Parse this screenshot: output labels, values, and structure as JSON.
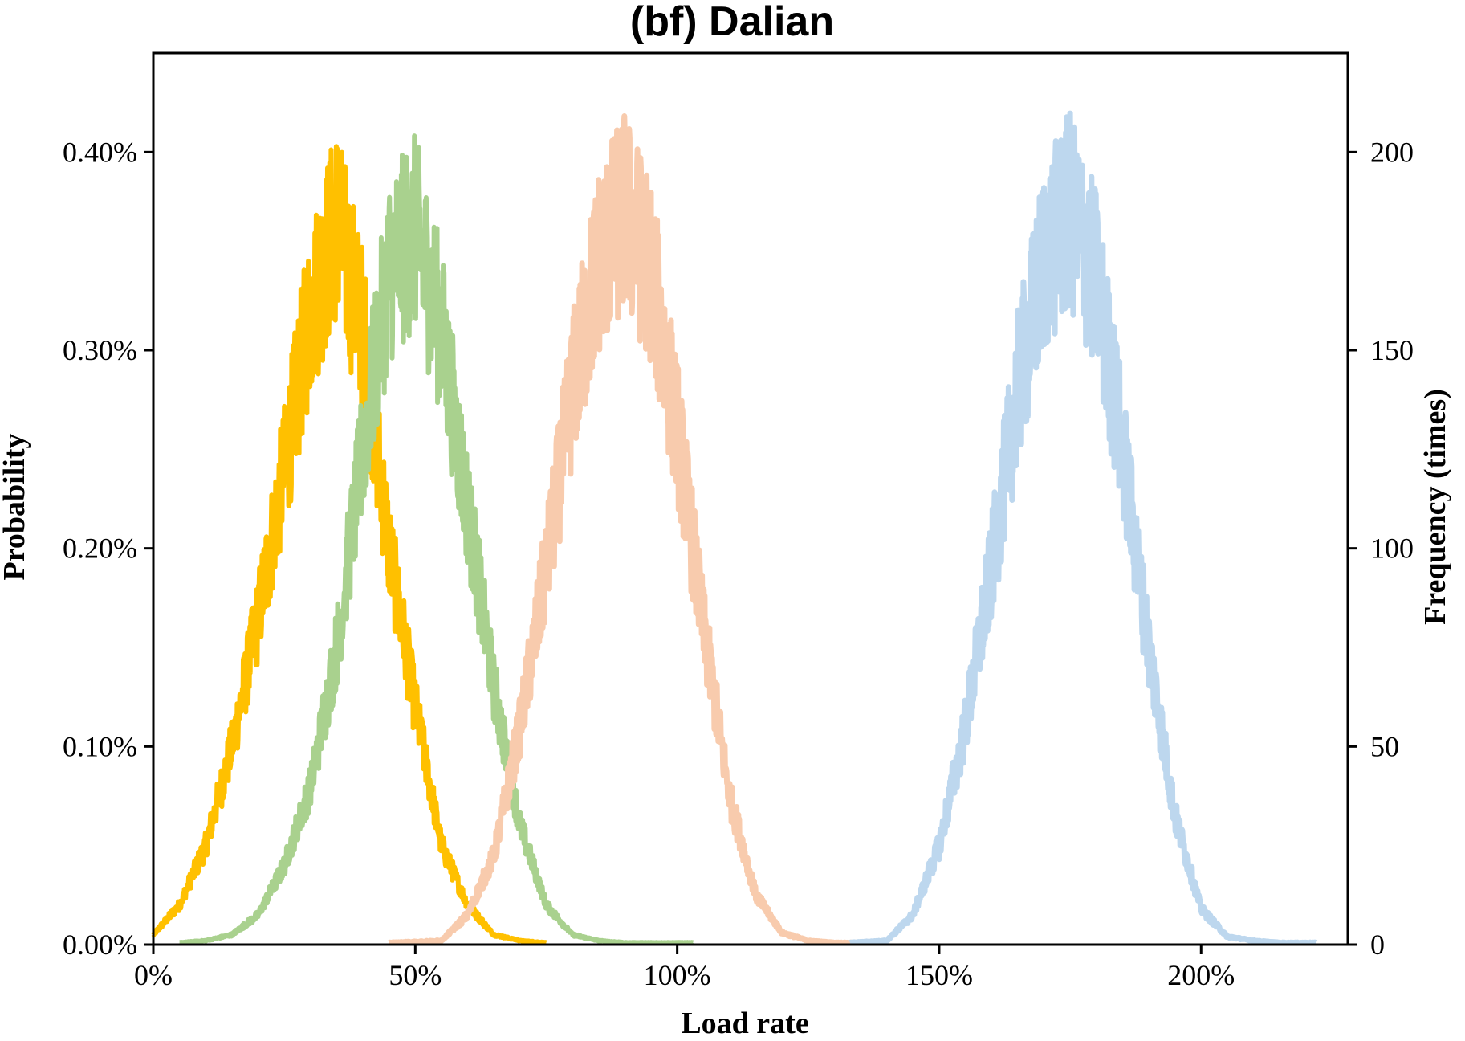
{
  "chart_data": {
    "type": "line",
    "title": "(bf) Dalian",
    "xlabel": "Load rate",
    "ylabel": "Probability",
    "y2label": "Frequency (times)",
    "xlim": [
      0,
      2.28
    ],
    "ylim": [
      0,
      0.0045
    ],
    "y2lim": [
      0,
      225
    ],
    "xticks": [
      0,
      0.5,
      1.0,
      1.5,
      2.0
    ],
    "xtick_labels": [
      "0%",
      "50%",
      "100%",
      "150%",
      "200%"
    ],
    "yticks": [
      0,
      0.001,
      0.002,
      0.003,
      0.004
    ],
    "ytick_labels": [
      "0.00%",
      "0.10%",
      "0.20%",
      "0.30%",
      "0.40%"
    ],
    "y2ticks": [
      0,
      50,
      100,
      150,
      200
    ],
    "y2tick_labels": [
      "0",
      "50",
      "100",
      "150",
      "200"
    ],
    "grid": false,
    "legend": "none",
    "series": [
      {
        "color": "#FFC000",
        "line_width": 6,
        "x": [
          0.0,
          0.05,
          0.1,
          0.15,
          0.2,
          0.25,
          0.3,
          0.35,
          0.4,
          0.45,
          0.5,
          0.55,
          0.6,
          0.65,
          0.7,
          0.75
        ],
        "y": [
          5e-05,
          0.0002,
          0.0005,
          0.001,
          0.00165,
          0.0024,
          0.0032,
          0.00365,
          0.0031,
          0.002,
          0.0012,
          0.0005,
          0.0002,
          5e-05,
          2e-05,
          1e-05
        ]
      },
      {
        "color": "#A9D18E",
        "line_width": 6,
        "x": [
          0.05,
          0.1,
          0.15,
          0.2,
          0.25,
          0.3,
          0.35,
          0.4,
          0.45,
          0.5,
          0.55,
          0.6,
          0.65,
          0.7,
          0.75,
          0.8,
          0.85,
          0.9,
          0.95,
          1.0,
          1.03
        ],
        "y": [
          1e-05,
          2e-05,
          5e-05,
          0.00015,
          0.0004,
          0.0008,
          0.0015,
          0.0025,
          0.0034,
          0.0036,
          0.0031,
          0.0022,
          0.0013,
          0.0006,
          0.0002,
          5e-05,
          2e-05,
          1e-05,
          1e-05,
          1e-05,
          1e-05
        ]
      },
      {
        "color": "#F8CBAD",
        "line_width": 7,
        "x": [
          0.45,
          0.55,
          0.6,
          0.65,
          0.7,
          0.75,
          0.8,
          0.85,
          0.9,
          0.95,
          1.0,
          1.05,
          1.1,
          1.15,
          1.2,
          1.25,
          1.3,
          1.38
        ],
        "y": [
          1e-05,
          2e-05,
          0.00015,
          0.00045,
          0.0011,
          0.0019,
          0.0028,
          0.00345,
          0.0037,
          0.0034,
          0.0026,
          0.0016,
          0.00075,
          0.00025,
          6e-05,
          2e-05,
          1e-05,
          1e-05
        ]
      },
      {
        "color": "#BDD7EE",
        "line_width": 7,
        "x": [
          1.33,
          1.4,
          1.45,
          1.5,
          1.55,
          1.6,
          1.65,
          1.7,
          1.75,
          1.8,
          1.85,
          1.9,
          1.95,
          2.0,
          2.05,
          2.1,
          2.15,
          2.22
        ],
        "y": [
          1e-05,
          2e-05,
          0.00015,
          0.0005,
          0.0011,
          0.0019,
          0.0028,
          0.00345,
          0.0037,
          0.00335,
          0.0025,
          0.0015,
          0.00065,
          0.00018,
          4e-05,
          2e-05,
          1e-05,
          1e-05
        ]
      }
    ]
  }
}
